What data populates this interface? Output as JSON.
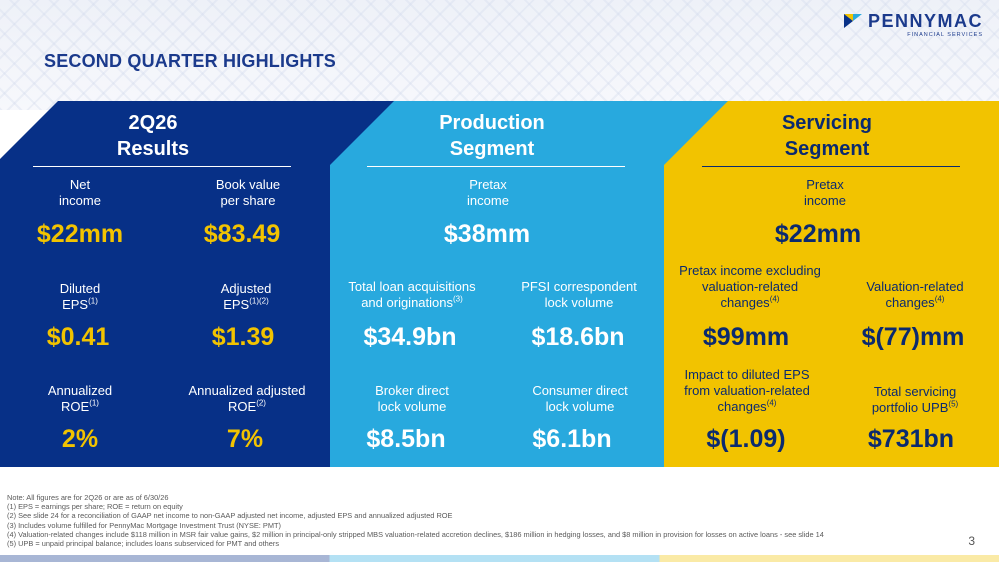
{
  "header": {
    "title": "SECOND QUARTER HIGHLIGHTS",
    "logo_name": "PENNYMAC",
    "logo_sub": "FINANCIAL SERVICES"
  },
  "panels": {
    "results": {
      "title_line1": "2Q26",
      "title_line2": "Results",
      "metrics": [
        {
          "label1": "Net",
          "label2": "income",
          "sup": "",
          "value": "$22mm"
        },
        {
          "label1": "Book value",
          "label2": "per share",
          "sup": "",
          "value": "$83.49"
        },
        {
          "label1": "Diluted",
          "label2": "EPS",
          "sup": "(1)",
          "value": "$0.41"
        },
        {
          "label1": "Adjusted",
          "label2": "EPS",
          "sup": "(1)(2)",
          "value": "$1.39"
        },
        {
          "label1": "Annualized",
          "label2": "ROE",
          "sup": "(1)",
          "value": "2%"
        },
        {
          "label1": "Annualized adjusted",
          "label2": "ROE",
          "sup": "(2)",
          "value": "7%"
        }
      ]
    },
    "production": {
      "title_line1": "Production",
      "title_line2": "Segment",
      "top": {
        "label1": "Pretax",
        "label2": "income",
        "value": "$38mm"
      },
      "metrics": [
        {
          "label1": "Total loan acquisitions",
          "label2": "and originations",
          "sup": "(3)",
          "value": "$34.9bn"
        },
        {
          "label1": "PFSI correspondent",
          "label2": "lock volume",
          "sup": "",
          "value": "$18.6bn"
        },
        {
          "label1": "Broker direct",
          "label2": "lock volume",
          "sup": "",
          "value": "$8.5bn"
        },
        {
          "label1": "Consumer direct",
          "label2": "lock volume",
          "sup": "",
          "value": "$6.1bn"
        }
      ]
    },
    "servicing": {
      "title_line1": "Servicing",
      "title_line2": "Segment",
      "top": {
        "label1": "Pretax",
        "label2": "income",
        "value": "$22mm"
      },
      "metrics": [
        {
          "label1": "Pretax income excluding",
          "label2": "valuation-related",
          "label3": "changes",
          "sup": "(4)",
          "value": "$99mm"
        },
        {
          "label1": "Valuation-related",
          "label2": "changes",
          "sup": "(4)",
          "value": "$(77)mm"
        },
        {
          "label1": "Impact to diluted EPS",
          "label2": "from valuation-related",
          "label3": "changes",
          "sup": "(4)",
          "value": "$(1.09)"
        },
        {
          "label1": "Total servicing",
          "label2": "portfolio UPB",
          "sup": "(5)",
          "value": "$731bn"
        }
      ]
    }
  },
  "footnotes": [
    "Note: All figures are for 2Q26 or are as of 6/30/26",
    "(1) EPS = earnings per share; ROE = return on equity",
    "(2) See slide 24 for a reconciliation of GAAP net income to non-GAAP adjusted net income, adjusted EPS and annualized adjusted ROE",
    "(3) Includes volume fulfilled for PennyMac Mortgage Investment Trust (NYSE: PMT)",
    "(4) Valuation-related changes include $118 million in MSR fair value gains, $2 million in principal-only stripped MBS valuation-related accretion declines, $186 million in hedging losses, and $8 million in provision for losses on active loans - see slide 14",
    "(5) UPB = unpaid principal balance; includes loans subserviced for PMT and others"
  ],
  "page_number": "3",
  "colors": {
    "navy": "#073087",
    "blue": "#28a9de",
    "yellow": "#f2c300"
  }
}
